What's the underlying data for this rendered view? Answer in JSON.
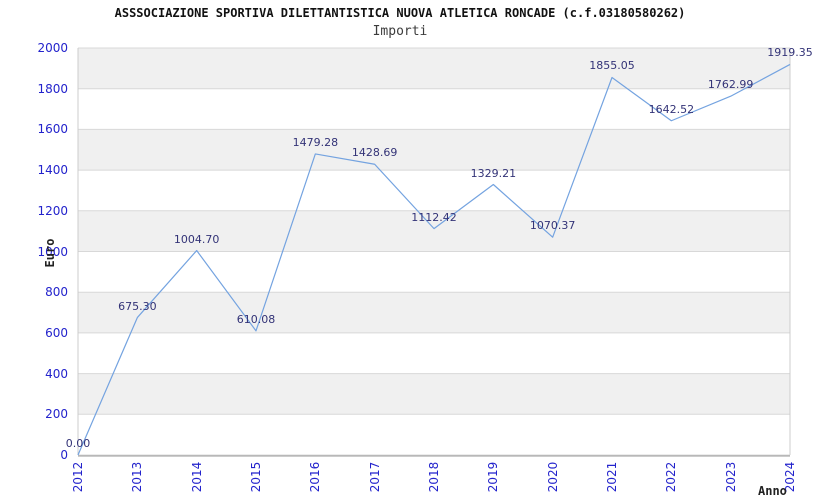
{
  "chart_data": {
    "type": "line",
    "title": "ASSSOCIAZIONE SPORTIVA DILETTANTISTICA NUOVA ATLETICA RONCADE (c.f.03180580262)",
    "subtitle": "Importi",
    "xlabel": "Anno",
    "ylabel": "Euro",
    "categories": [
      "2012",
      "2013",
      "2014",
      "2015",
      "2016",
      "2017",
      "2018",
      "2019",
      "2020",
      "2021",
      "2022",
      "2023",
      "2024"
    ],
    "values": [
      0.0,
      675.3,
      1004.7,
      610.08,
      1479.28,
      1428.69,
      1112.42,
      1329.21,
      1070.37,
      1855.05,
      1642.52,
      1762.99,
      1919.35
    ],
    "value_labels": [
      "0.00",
      "675.30",
      "1004.70",
      "610.08",
      "1479.28",
      "1428.69",
      "1112.42",
      "1329.21",
      "1070.37",
      "1855.05",
      "1642.52",
      "1762.99",
      "1919.35"
    ],
    "ylim": [
      0,
      2000
    ],
    "ytick_step": 200,
    "ytick_labels": [
      "0",
      "200",
      "400",
      "600",
      "800",
      "1000",
      "1200",
      "1400",
      "1600",
      "1800",
      "2000"
    ],
    "grid": true,
    "legend": "none",
    "colors": {
      "line": "#74a3e0",
      "tick_label": "#2323cc",
      "value_label": "#333377",
      "band": "#f0f0f0",
      "gridline": "#d8d8d8",
      "plot_border": "#cccccc",
      "axis_line": "#999999",
      "title": "#111111",
      "subtitle": "#3c3c3c"
    }
  }
}
